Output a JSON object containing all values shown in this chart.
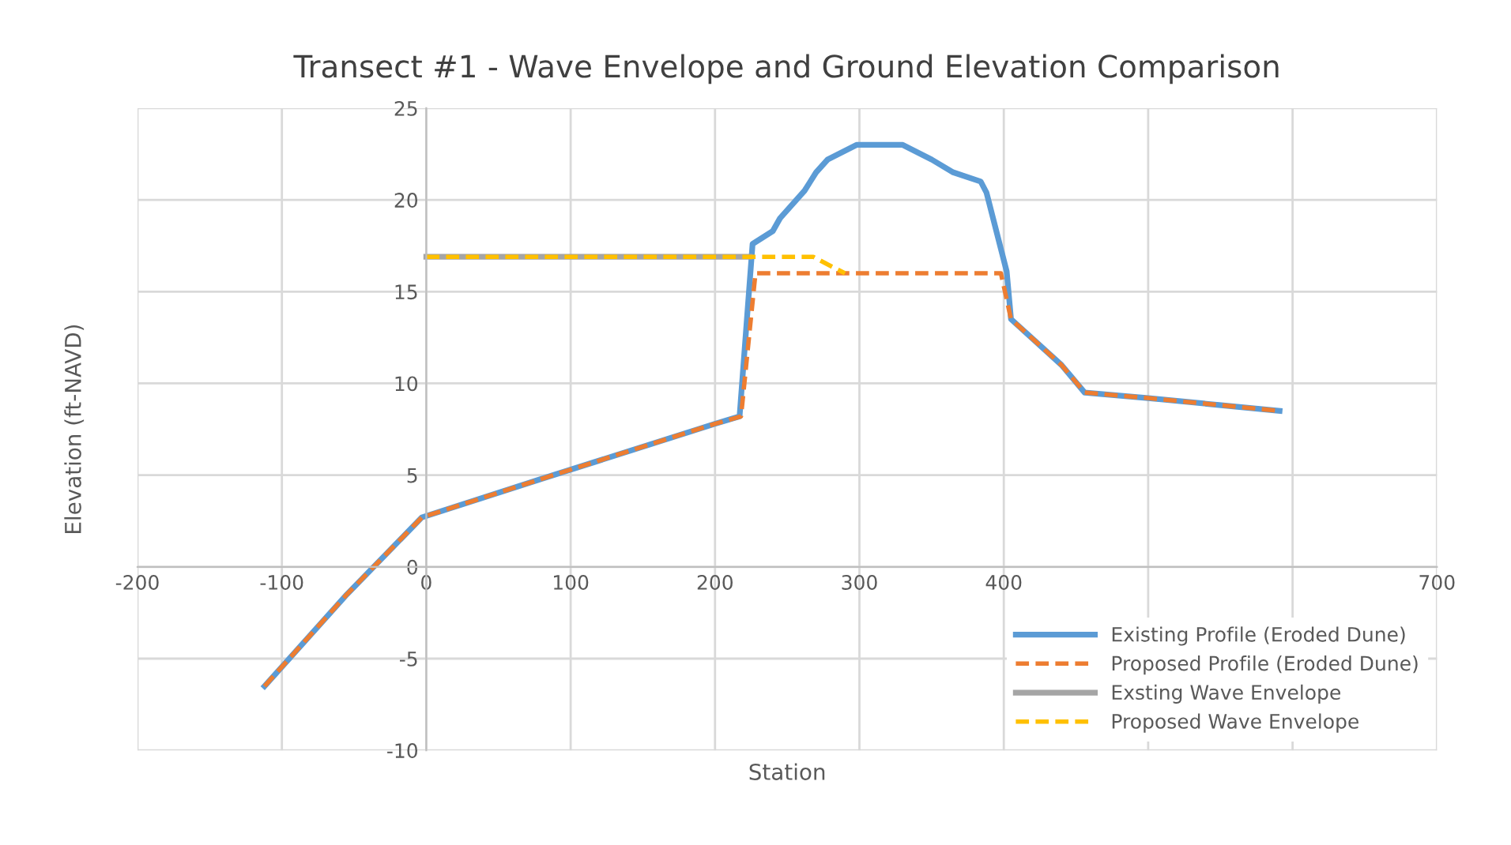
{
  "chart_data": {
    "type": "line",
    "title": "Transect #1 - Wave Envelope and Ground Elevation Comparison",
    "xlabel": "Station",
    "ylabel": "Elevation (ft-NAVD)",
    "xlim": [
      -200,
      700
    ],
    "xticks": [
      -200,
      -100,
      0,
      100,
      200,
      300,
      400,
      {
        "value": 500,
        "label": null
      },
      {
        "value": 600,
        "label": null
      },
      700
    ],
    "ylim": [
      -10,
      25
    ],
    "yticks": [
      -10,
      -5,
      0,
      5,
      10,
      15,
      20,
      25
    ],
    "grid": true,
    "legend": "bottom right",
    "marker": "none",
    "series": [
      {
        "name": "Existing Profile (Eroded Dune)",
        "color": "#5b9bd5",
        "line_style": "solid",
        "x": [
          -112,
          -55,
          -3,
          80,
          200,
          217,
          226,
          240,
          245,
          262,
          266,
          270,
          278,
          298,
          330,
          350,
          365,
          384,
          388,
          402,
          405,
          440,
          456,
          500,
          591
        ],
        "values": [
          -6.5,
          -1.5,
          2.7,
          4.8,
          7.8,
          8.2,
          17.6,
          18.3,
          19,
          20.5,
          21,
          21.5,
          22.2,
          23,
          23,
          22.2,
          21.5,
          21,
          20.4,
          16.1,
          13.5,
          11,
          9.5,
          9.2,
          8.5
        ]
      },
      {
        "name": "Proposed Profile (Eroded Dune)",
        "color": "#ed7d31",
        "line_style": "dashed",
        "x": [
          -112,
          -55,
          -3,
          80,
          200,
          218,
          228,
          398,
          405,
          440,
          456,
          500,
          591
        ],
        "values": [
          -6.5,
          -1.5,
          2.7,
          4.8,
          7.8,
          8.2,
          16,
          16,
          13.5,
          11,
          9.5,
          9.2,
          8.5
        ]
      },
      {
        "name": "Exsting Wave Envelope",
        "color": "#a5a5a5",
        "line_style": "solid",
        "x": [
          0,
          224
        ],
        "values": [
          16.9,
          16.9
        ]
      },
      {
        "name": "Proposed Wave Envelope",
        "color": "#ffc000",
        "line_style": "dashed",
        "x": [
          0,
          268,
          280,
          290
        ],
        "values": [
          16.9,
          16.9,
          16.4,
          16
        ]
      }
    ]
  }
}
